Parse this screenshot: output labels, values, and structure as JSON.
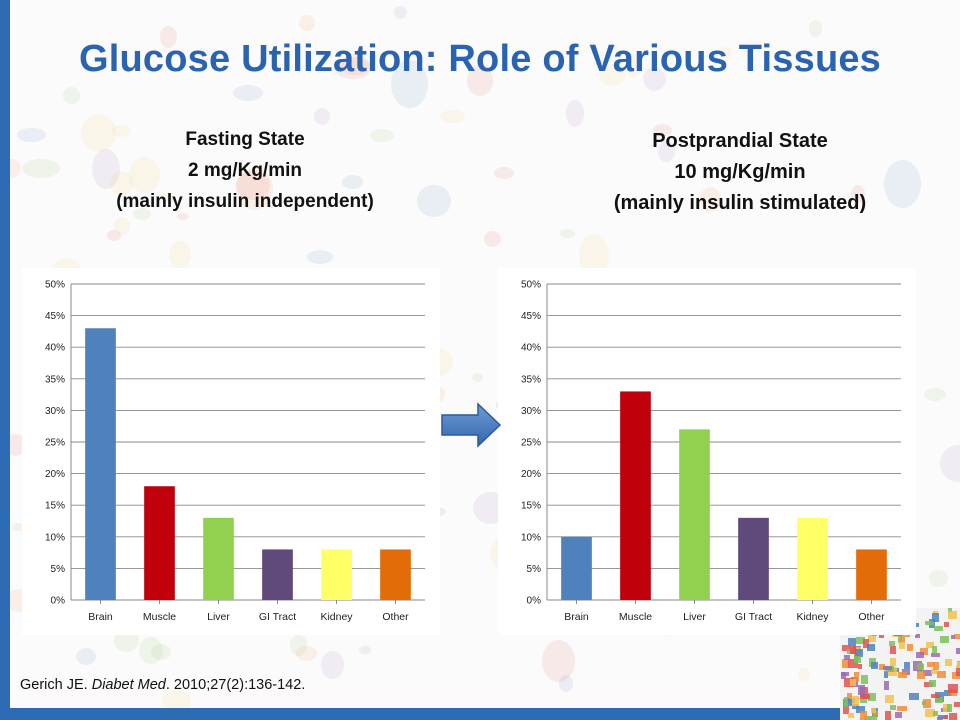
{
  "slide": {
    "title": "Glucose Utilization: Role of Various Tissues",
    "accent_color": "#2a63b0"
  },
  "left_heading": {
    "line1": "Fasting State",
    "line2": "2 mg/Kg/min",
    "line3": "(mainly insulin independent)"
  },
  "right_heading": {
    "line1": "Postprandial State",
    "line2": "10 mg/Kg/min",
    "line3": "(mainly insulin stimulated)"
  },
  "citation": {
    "author": "Gerich JE.",
    "journal": "Diabet Med",
    "rest": ". 2010;27(2):136-142."
  },
  "icons": {
    "transition_arrow": "right-arrow-icon"
  },
  "chart_data": [
    {
      "type": "bar",
      "categories": [
        "Brain",
        "Muscle",
        "Liver",
        "GI Tract",
        "Kidney",
        "Other"
      ],
      "values": [
        43,
        18,
        13,
        8,
        8,
        8
      ],
      "colors": [
        "#4f81bd",
        "#c0000b",
        "#92d050",
        "#604a7b",
        "#ffff66",
        "#e36c09"
      ],
      "yticks": [
        "0%",
        "5%",
        "10%",
        "15%",
        "20%",
        "25%",
        "30%",
        "35%",
        "40%",
        "45%",
        "50%"
      ],
      "ylim": [
        0,
        50
      ],
      "grid": true
    },
    {
      "type": "bar",
      "categories": [
        "Brain",
        "Muscle",
        "Liver",
        "GI Tract",
        "Kidney",
        "Other"
      ],
      "values": [
        10,
        33,
        27,
        13,
        13,
        8
      ],
      "colors": [
        "#4f81bd",
        "#c0000b",
        "#92d050",
        "#604a7b",
        "#ffff66",
        "#e36c09"
      ],
      "yticks": [
        "0%",
        "5%",
        "10%",
        "15%",
        "20%",
        "25%",
        "30%",
        "35%",
        "40%",
        "45%",
        "50%"
      ],
      "ylim": [
        0,
        50
      ],
      "grid": true
    }
  ]
}
